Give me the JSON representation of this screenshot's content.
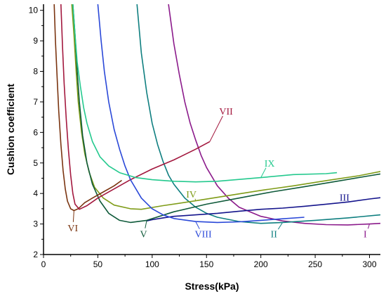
{
  "chart_data": {
    "type": "line",
    "title": "",
    "xlabel": "Stress(kPa)",
    "ylabel": "Cushion coefficient",
    "xlim": [
      0,
      310
    ],
    "ylim": [
      2,
      10.2
    ],
    "xticks": [
      0,
      50,
      100,
      150,
      200,
      250,
      300
    ],
    "yticks": [
      2,
      3,
      4,
      5,
      6,
      7,
      8,
      9,
      10
    ],
    "grid": false,
    "legend": "inline labels",
    "series": [
      {
        "name": "I",
        "color": "#8b1a8b",
        "x": [
          115,
          120,
          125,
          130,
          135,
          140,
          145,
          150,
          160,
          170,
          180,
          200,
          220,
          240,
          260,
          280,
          300,
          310
        ],
        "y": [
          10.2,
          8.9,
          7.9,
          7.0,
          6.3,
          5.75,
          5.25,
          4.85,
          4.25,
          3.85,
          3.55,
          3.25,
          3.1,
          3.02,
          2.98,
          2.97,
          3.0,
          3.02
        ],
        "label_x": 296,
        "label_y": 2.68
      },
      {
        "name": "II",
        "color": "#0f7f80",
        "x": [
          86,
          90,
          95,
          100,
          105,
          110,
          115,
          120,
          130,
          140,
          150,
          160,
          180,
          200,
          220,
          250,
          280,
          310
        ],
        "y": [
          10.2,
          8.6,
          7.3,
          6.3,
          5.6,
          5.05,
          4.6,
          4.3,
          3.85,
          3.55,
          3.35,
          3.22,
          3.08,
          3.02,
          3.05,
          3.12,
          3.2,
          3.3
        ],
        "label_x": 212,
        "label_y": 2.68
      },
      {
        "name": "III",
        "color": "#14148c",
        "x": [
          95,
          100,
          110,
          120,
          140,
          160,
          180,
          200,
          220,
          240,
          260,
          280,
          300,
          310
        ],
        "y": [
          3.1,
          3.14,
          3.2,
          3.25,
          3.3,
          3.35,
          3.42,
          3.48,
          3.52,
          3.58,
          3.65,
          3.72,
          3.82,
          3.86
        ],
        "label_x": 277,
        "label_y": 3.88
      },
      {
        "name": "IV",
        "color": "#7f9c18",
        "x": [
          26,
          28,
          30,
          32,
          35,
          38,
          42,
          47,
          55,
          65,
          80,
          90,
          110,
          140,
          170,
          200,
          230,
          260,
          290,
          310
        ],
        "y": [
          10.2,
          9.2,
          8.0,
          7.0,
          6.0,
          5.3,
          4.7,
          4.2,
          3.85,
          3.62,
          3.5,
          3.48,
          3.6,
          3.76,
          3.93,
          4.1,
          4.25,
          4.42,
          4.58,
          4.72
        ],
        "label_x": 136,
        "label_y": 3.98
      },
      {
        "name": "V",
        "color": "#0f5a3a",
        "x": [
          27,
          29,
          31,
          33,
          36,
          40,
          45,
          52,
          60,
          70,
          80,
          95,
          120,
          150,
          180,
          210,
          240,
          270,
          300,
          310
        ],
        "y": [
          10.2,
          9.2,
          8.0,
          7.0,
          5.9,
          5.0,
          4.3,
          3.75,
          3.35,
          3.12,
          3.05,
          3.12,
          3.4,
          3.65,
          3.85,
          4.05,
          4.22,
          4.4,
          4.58,
          4.64
        ],
        "label_x": 92,
        "label_y": 2.68
      },
      {
        "name": "VI",
        "color": "#7a3410",
        "x": [
          9.8,
          11,
          12.5,
          14,
          16,
          18,
          20,
          22,
          25,
          28,
          32,
          38,
          45,
          55,
          65,
          72
        ],
        "y": [
          10.2,
          9.0,
          7.8,
          6.7,
          5.6,
          4.75,
          4.15,
          3.75,
          3.5,
          3.44,
          3.5,
          3.7,
          3.85,
          4.05,
          4.25,
          4.43
        ],
        "label_x": 27,
        "label_y": 2.88
      },
      {
        "name": "VII",
        "color": "#a3183e",
        "x": [
          16,
          17.5,
          19,
          21,
          23,
          25,
          27,
          29,
          33,
          40,
          50,
          65,
          80,
          100,
          120,
          140,
          153
        ],
        "y": [
          10.2,
          8.8,
          7.6,
          6.4,
          5.4,
          4.6,
          4.0,
          3.65,
          3.48,
          3.6,
          3.85,
          4.15,
          4.45,
          4.8,
          5.1,
          5.45,
          5.7
        ],
        "label_x": 168,
        "label_y": 6.7
      },
      {
        "name": "VIII",
        "color": "#2a48d8",
        "x": [
          50,
          53,
          56,
          60,
          65,
          70,
          75,
          80,
          90,
          100,
          110,
          120,
          140,
          160,
          180,
          200,
          220,
          240
        ],
        "y": [
          10.2,
          9.0,
          8.0,
          7.0,
          6.1,
          5.45,
          4.9,
          4.45,
          3.85,
          3.5,
          3.3,
          3.18,
          3.08,
          3.05,
          3.07,
          3.12,
          3.17,
          3.22
        ],
        "label_x": 147,
        "label_y": 2.68
      },
      {
        "name": "IX",
        "color": "#24c98e",
        "x": [
          27,
          29,
          31,
          34,
          37,
          40,
          45,
          52,
          60,
          70,
          85,
          100,
          120,
          140,
          160,
          180,
          200,
          230,
          260,
          270
        ],
        "y": [
          10.2,
          9.2,
          8.3,
          7.5,
          6.8,
          6.3,
          5.7,
          5.2,
          4.9,
          4.68,
          4.52,
          4.45,
          4.4,
          4.38,
          4.4,
          4.46,
          4.52,
          4.62,
          4.65,
          4.68
        ],
        "label_x": 208,
        "label_y": 5.0
      }
    ]
  }
}
